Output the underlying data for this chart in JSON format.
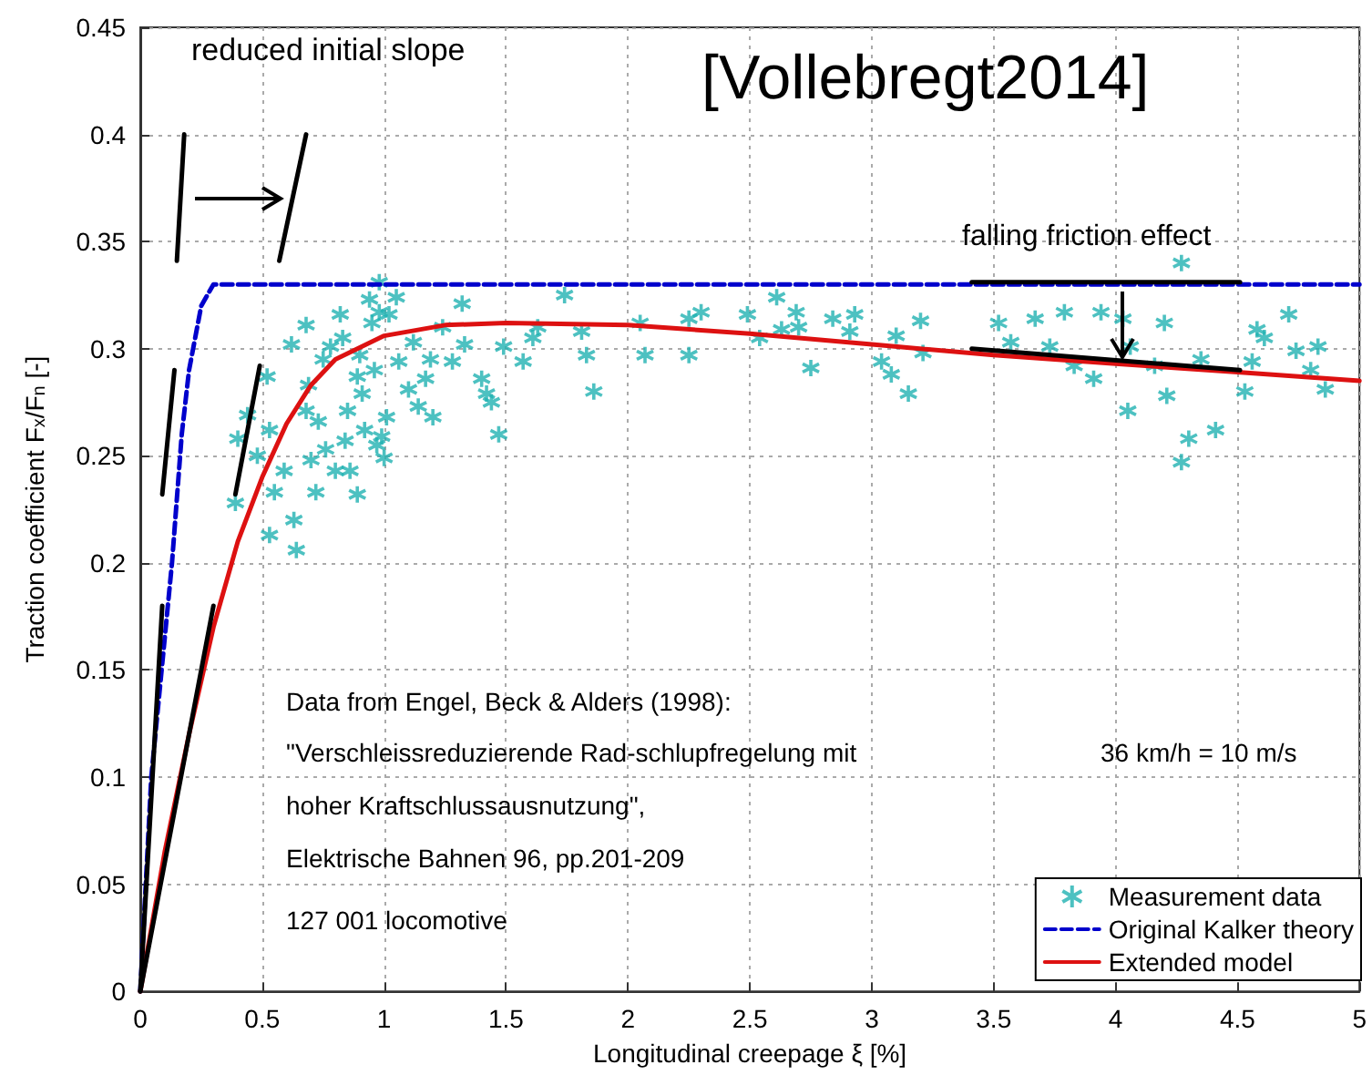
{
  "chart_data": {
    "type": "scatter",
    "xlabel": "Longitudinal creepage ξ [%]",
    "ylabel": "Traction coefficient F$_{x}$/F$_{n}$ [-]",
    "xlim": [
      0,
      5
    ],
    "xticks": [
      0,
      0.5,
      1,
      1.5,
      2,
      2.5,
      3,
      3.5,
      4,
      4.5,
      5
    ],
    "ylim": [
      0,
      0.45
    ],
    "yticks": [
      0,
      0.05,
      0.1,
      0.15,
      0.2,
      0.25,
      0.3,
      0.35,
      0.4,
      0.45
    ],
    "grid": true,
    "legend": "bottom right",
    "annotations": [
      "reduced initial slope",
      "[Vollebregt2014]",
      "falling friction effect",
      "Data from Engel, Beck & Alders (1998):",
      "\"Verschleissreduzierende Rad-schlupfregelung mit",
      "hoher Kraftschlussausnutzung\",",
      "Elektrische Bahnen 96, pp.201-209",
      "127 001 locomotive",
      "36 km/h = 10 m/s"
    ],
    "series": [
      {
        "name": "Measurement data",
        "marker": "cross",
        "color": "#20b2b2",
        "x": [
          0.39,
          0.4,
          0.44,
          0.48,
          0.52,
          0.53,
          0.55,
          0.59,
          0.62,
          0.63,
          0.68,
          0.68,
          0.69,
          0.7,
          0.72,
          0.73,
          0.75,
          0.76,
          0.78,
          0.8,
          0.82,
          0.83,
          0.84,
          0.85,
          0.86,
          0.89,
          0.89,
          0.9,
          0.91,
          0.92,
          0.94,
          0.95,
          0.96,
          0.97,
          0.98,
          0.98,
          0.99,
          1.0,
          1.01,
          1.02,
          1.05,
          1.06,
          1.1,
          1.12,
          1.14,
          1.17,
          1.19,
          1.2,
          1.24,
          1.28,
          1.32,
          1.33,
          1.4,
          1.42,
          1.44,
          1.47,
          1.49,
          1.57,
          1.61,
          1.63,
          1.74,
          1.81,
          1.83,
          1.86,
          2.05,
          2.07,
          2.25,
          2.25,
          2.3,
          2.49,
          2.54,
          2.61,
          2.63,
          2.69,
          2.7,
          2.75,
          2.84,
          2.91,
          2.93,
          3.04,
          3.08,
          3.1,
          3.15,
          3.2,
          3.21,
          3.52,
          3.57,
          3.67,
          3.73,
          3.79,
          3.83,
          3.91,
          3.94,
          4.03,
          4.05,
          4.06,
          4.16,
          4.2,
          4.21,
          4.27,
          4.27,
          4.3,
          4.35,
          4.41,
          4.53,
          4.56,
          4.58,
          4.61,
          4.71,
          4.74,
          4.8,
          4.83,
          4.86,
          0.53,
          0.64
        ],
        "values": [
          0.228,
          0.258,
          0.269,
          0.25,
          0.287,
          0.262,
          0.233,
          0.243,
          0.302,
          0.22,
          0.311,
          0.271,
          0.283,
          0.248,
          0.233,
          0.266,
          0.295,
          0.253,
          0.301,
          0.243,
          0.316,
          0.305,
          0.257,
          0.271,
          0.243,
          0.232,
          0.287,
          0.297,
          0.279,
          0.262,
          0.323,
          0.312,
          0.29,
          0.255,
          0.331,
          0.317,
          0.259,
          0.249,
          0.268,
          0.316,
          0.324,
          0.294,
          0.281,
          0.303,
          0.273,
          0.286,
          0.295,
          0.268,
          0.31,
          0.294,
          0.321,
          0.302,
          0.286,
          0.279,
          0.275,
          0.26,
          0.301,
          0.294,
          0.305,
          0.31,
          0.325,
          0.308,
          0.297,
          0.28,
          0.312,
          0.297,
          0.314,
          0.297,
          0.317,
          0.316,
          0.305,
          0.324,
          0.309,
          0.317,
          0.31,
          0.291,
          0.314,
          0.308,
          0.316,
          0.294,
          0.288,
          0.306,
          0.279,
          0.313,
          0.298,
          0.312,
          0.303,
          0.314,
          0.301,
          0.317,
          0.292,
          0.286,
          0.317,
          0.314,
          0.271,
          0.301,
          0.292,
          0.312,
          0.278,
          0.34,
          0.247,
          0.258,
          0.295,
          0.262,
          0.28,
          0.294,
          0.309,
          0.305,
          0.316,
          0.299,
          0.29,
          0.301,
          0.281,
          0.213,
          0.206
        ]
      },
      {
        "name": "Original Kalker theory",
        "type": "line",
        "line_style": "dashed",
        "color": "#0000cc",
        "x": [
          0,
          0.045,
          0.13,
          0.17,
          0.2,
          0.25,
          0.3,
          5
        ],
        "values": [
          0,
          0.1,
          0.2,
          0.26,
          0.29,
          0.32,
          0.33,
          0.33
        ]
      },
      {
        "name": "Extended model",
        "type": "line",
        "color": "#dd1111",
        "x": [
          0,
          0.1,
          0.2,
          0.3,
          0.4,
          0.5,
          0.6,
          0.7,
          0.8,
          1,
          1.25,
          1.5,
          2,
          2.5,
          3,
          3.5,
          4,
          4.5,
          5
        ],
        "values": [
          0,
          0.065,
          0.12,
          0.17,
          0.21,
          0.24,
          0.265,
          0.283,
          0.295,
          0.306,
          0.311,
          0.312,
          0.311,
          0.307,
          0.302,
          0.297,
          0.293,
          0.289,
          0.285
        ]
      },
      {
        "type": "line",
        "color": "#000000",
        "x": [
          0,
          0.09
        ],
        "values": [
          0,
          0.18
        ]
      },
      {
        "type": "line",
        "color": "#000000",
        "x": [
          0,
          0.3
        ],
        "values": [
          0,
          0.18
        ]
      },
      {
        "type": "line",
        "color": "#000000",
        "x": [
          0.09,
          0.14
        ],
        "values": [
          0.232,
          0.29
        ]
      },
      {
        "type": "line",
        "color": "#000000",
        "x": [
          0.39,
          0.49
        ],
        "values": [
          0.232,
          0.292
        ]
      },
      {
        "type": "line",
        "color": "#000000",
        "x": [
          0.15,
          0.18
        ],
        "values": [
          0.341,
          0.4
        ]
      },
      {
        "type": "line",
        "color": "#000000",
        "x": [
          0.57,
          0.68
        ],
        "values": [
          0.341,
          0.4
        ]
      },
      {
        "type": "line",
        "color": "#000000",
        "x": [
          3.41,
          4.51
        ],
        "values": [
          0.331,
          0.331
        ]
      },
      {
        "type": "line",
        "color": "#000000",
        "x": [
          3.41,
          4.51
        ],
        "values": [
          0.3,
          0.29
        ]
      }
    ]
  }
}
